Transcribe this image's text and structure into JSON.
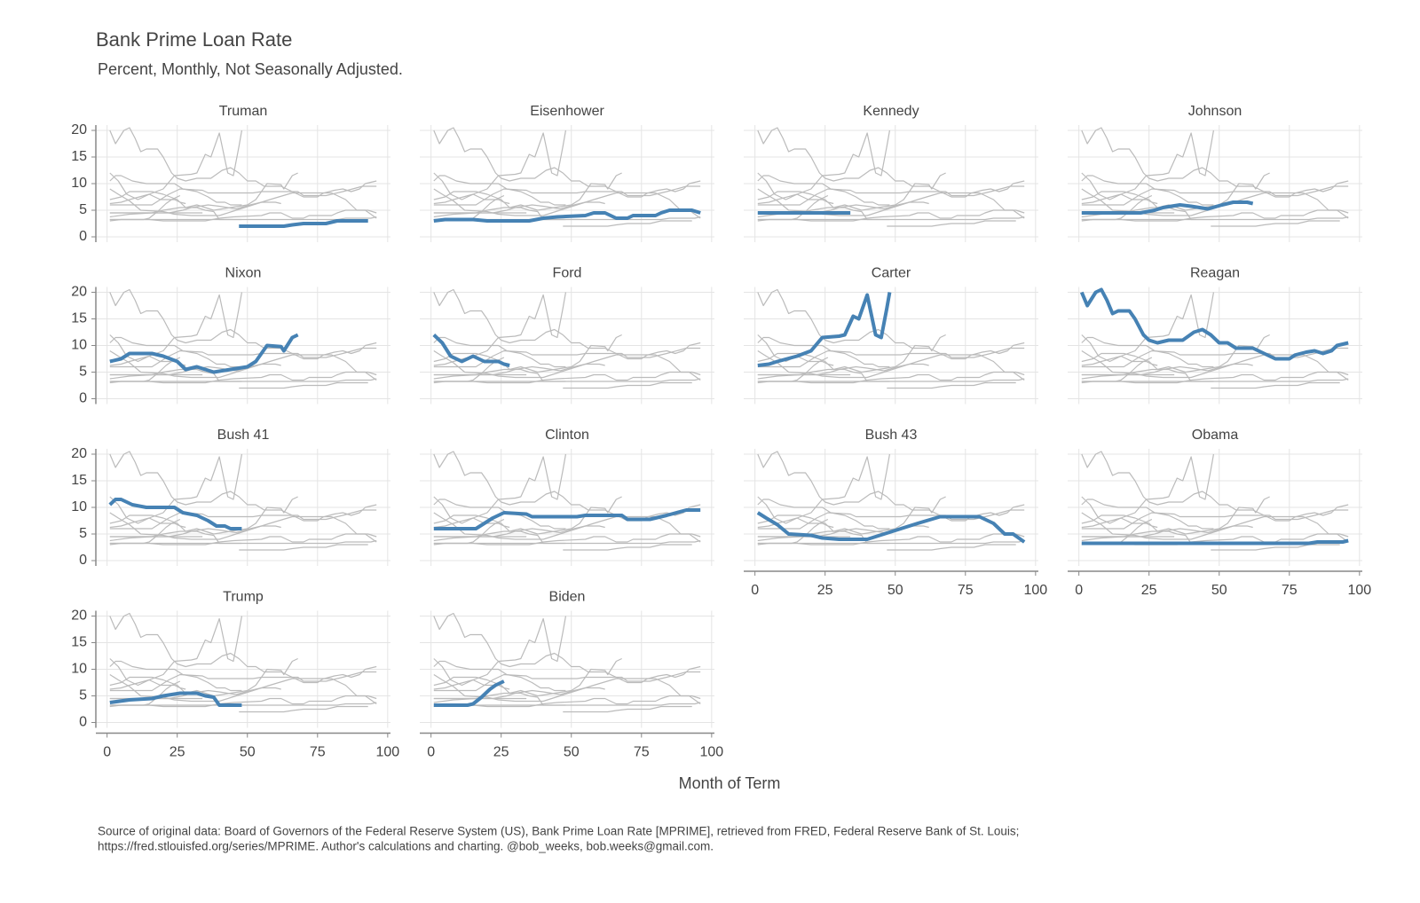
{
  "chart_data": {
    "type": "line",
    "title": "Bank Prime Loan Rate",
    "subtitle": "Percent, Monthly, Not Seasonally Adjusted.",
    "x_label": "Month of Term",
    "caption": [
      "Source of original data: Board of Governors of the Federal Reserve System (US), Bank Prime Loan Rate [MPRIME], retrieved from FRED, Federal Reserve Bank of St. Louis;",
      "https://fred.stlouisfed.org/series/MPRIME. Author's calculations and charting. @bob_weeks, bob.weeks@gmail.com."
    ],
    "xlim": [
      -4,
      101
    ],
    "xticks": [
      0,
      25,
      50,
      75,
      100
    ],
    "ylim": [
      -1,
      21
    ],
    "yticks": [
      0,
      5,
      10,
      15,
      20
    ],
    "grid": true,
    "color": "#bbbbbb",
    "highlight_color": "#4682b4",
    "series": [
      {
        "name": "Truman",
        "x": [
          47,
          55,
          63,
          66,
          70,
          78,
          82,
          93
        ],
        "values": [
          2,
          2,
          2,
          2.25,
          2.5,
          2.5,
          3,
          3
        ]
      },
      {
        "name": "Eisenhower",
        "x": [
          1,
          5,
          15,
          20,
          35,
          40,
          45,
          55,
          58,
          62,
          66,
          70,
          72,
          80,
          82,
          85,
          93,
          96
        ],
        "values": [
          3,
          3.25,
          3.25,
          3,
          3,
          3.5,
          3.75,
          4,
          4.5,
          4.5,
          3.5,
          3.5,
          4,
          4,
          4.5,
          5,
          5,
          4.5
        ]
      },
      {
        "name": "Kennedy",
        "x": [
          1,
          34
        ],
        "values": [
          4.5,
          4.5
        ]
      },
      {
        "name": "Johnson",
        "x": [
          1,
          22,
          27,
          30,
          36,
          40,
          46,
          51,
          55,
          60,
          62
        ],
        "values": [
          4.5,
          4.5,
          5,
          5.5,
          6,
          5.75,
          5.25,
          6,
          6.5,
          6.5,
          6.25
        ]
      },
      {
        "name": "Nixon",
        "x": [
          1,
          5,
          8,
          16,
          20,
          25,
          28,
          32,
          38,
          44,
          50,
          53,
          57,
          62,
          63,
          66,
          68
        ],
        "values": [
          7,
          7.5,
          8.5,
          8.5,
          8,
          7,
          5.5,
          6,
          5,
          5.5,
          6,
          7,
          10,
          9.8,
          9,
          11.5,
          12
        ]
      },
      {
        "name": "Ford",
        "x": [
          1,
          4,
          7,
          11,
          15,
          19,
          22,
          24,
          26,
          28
        ],
        "values": [
          12,
          10.5,
          8,
          7,
          8,
          7,
          7,
          7,
          6.5,
          6.25
        ]
      },
      {
        "name": "Carter",
        "x": [
          1,
          5,
          8,
          15,
          20,
          24,
          30,
          32,
          35,
          37,
          40,
          43,
          45,
          47,
          48
        ],
        "values": [
          6.25,
          6.5,
          7,
          8,
          9,
          11.5,
          11.75,
          12,
          15.5,
          15,
          19.5,
          12,
          11.5,
          17,
          20
        ]
      },
      {
        "name": "Reagan",
        "x": [
          1,
          3,
          6,
          8,
          10,
          12,
          14,
          18,
          20,
          23,
          25,
          28,
          32,
          37,
          41,
          44,
          47,
          50,
          53,
          56,
          62,
          66,
          70,
          75,
          77,
          81,
          84,
          87,
          90,
          92,
          96
        ],
        "values": [
          20,
          17.5,
          20,
          20.5,
          18.5,
          16,
          16.5,
          16.5,
          15,
          12,
          11,
          10.5,
          11,
          11,
          12.5,
          13,
          12,
          10.5,
          10.5,
          9.5,
          9.5,
          8.5,
          7.5,
          7.5,
          8.2,
          8.75,
          9,
          8.5,
          9,
          10,
          10.5
        ]
      },
      {
        "name": "Bush 41",
        "x": [
          1,
          3,
          5,
          9,
          14,
          24,
          27,
          32,
          36,
          39,
          42,
          44,
          48
        ],
        "values": [
          10.5,
          11.5,
          11.5,
          10.5,
          10,
          10,
          9,
          8.5,
          7.5,
          6.5,
          6.5,
          6,
          6
        ]
      },
      {
        "name": "Clinton",
        "x": [
          1,
          16,
          19,
          22,
          26,
          34,
          36,
          52,
          55,
          68,
          70,
          78,
          84,
          91,
          96
        ],
        "values": [
          6,
          6,
          7,
          8,
          9,
          8.75,
          8.25,
          8.25,
          8.5,
          8.5,
          7.75,
          7.75,
          8.5,
          9.5,
          9.5
        ]
      },
      {
        "name": "Bush 43",
        "x": [
          1,
          4,
          8,
          12,
          20,
          24,
          30,
          40,
          46,
          52,
          58,
          66,
          80,
          85,
          89,
          92,
          96
        ],
        "values": [
          9,
          8,
          6.75,
          5,
          4.75,
          4.25,
          4,
          4,
          5,
          6,
          7,
          8.25,
          8.25,
          7,
          5,
          5,
          3.5
        ]
      },
      {
        "name": "Obama",
        "x": [
          1,
          82,
          85,
          94,
          96
        ],
        "values": [
          3.25,
          3.25,
          3.5,
          3.5,
          3.75
        ]
      },
      {
        "name": "Trump",
        "x": [
          1,
          8,
          16,
          20,
          26,
          32,
          35,
          38,
          40,
          48
        ],
        "values": [
          3.75,
          4.25,
          4.5,
          5,
          5.5,
          5.5,
          5,
          4.75,
          3.25,
          3.25
        ]
      },
      {
        "name": "Biden",
        "x": [
          1,
          13,
          15,
          18,
          21,
          23,
          25,
          26
        ],
        "values": [
          3.25,
          3.25,
          3.5,
          4.75,
          6.25,
          7,
          7.5,
          7.75
        ]
      }
    ]
  }
}
